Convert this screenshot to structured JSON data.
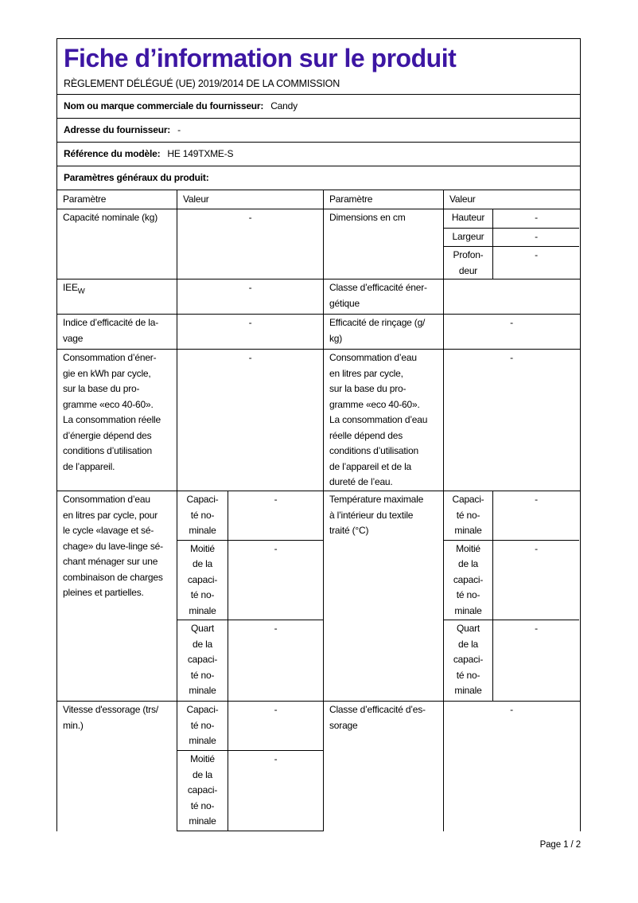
{
  "colors": {
    "title": "#3d16a3"
  },
  "header": {
    "title": "Fiche d’information sur le produit",
    "regulation": "RÈGLEMENT DÉLÉGUÉ (UE) 2019/2014 DE LA COMMISSION"
  },
  "supplier_rows": [
    {
      "label": "Nom ou marque commerciale du fournisseur:",
      "value": "Candy"
    },
    {
      "label": "Adresse du fournisseur:",
      "value": "-"
    },
    {
      "label": "Référence du modèle:",
      "value": "HE 149TXME-S"
    }
  ],
  "section_heading": "Paramètres généraux du produit:",
  "table": {
    "headers": [
      "Paramètre",
      "Valeur",
      "Paramètre",
      "Valeur"
    ],
    "rows": [
      {
        "left": {
          "label": "Capacité nominale (kg)",
          "value": "-"
        },
        "right": {
          "label": "Dimensions en cm",
          "sub": [
            {
              "label": "Hauteur",
              "value": "-"
            },
            {
              "label": "Largeur",
              "value": "-"
            },
            {
              "label": "Profon-\ndeur",
              "value": "-"
            }
          ]
        }
      },
      {
        "left": {
          "label_main": "IEE",
          "label_sub": "W",
          "value": "-"
        },
        "right": {
          "label": "Classe d’efficacité éner-\ngétique",
          "value": ""
        }
      },
      {
        "left": {
          "label": "Indice d’efficacité de la-\nvage",
          "value": "-"
        },
        "right": {
          "label": "Efficacité de rinçage (g/\nkg)",
          "value": "-"
        }
      },
      {
        "left": {
          "label": "Consommation d’éner-\ngie en kWh par cycle,\nsur la base du pro-\ngramme «eco 40-60».\nLa consommation réelle\nd’énergie dépend des\nconditions d’utilisation\nde l’appareil.",
          "value": "-"
        },
        "right": {
          "label": "Consommation d’eau\nen litres par cycle,\nsur la base du pro-\ngramme «eco 40-60».\nLa consommation d’eau\nréelle dépend des\nconditions d’utilisation\nde l’appareil et de la\ndureté de l’eau.",
          "value": "-"
        }
      },
      {
        "left": {
          "label": "Consommation d’eau\nen litres par cycle, pour\nle cycle «lavage et sé-\nchage» du lave-linge sé-\nchant ménager sur une\ncombinaison de charges\npleines et partielles.",
          "sub": [
            {
              "label": "Capaci-\nté no-\nminale",
              "value": "-"
            },
            {
              "label": "Moitié\nde la\ncapaci-\nté no-\nminale",
              "value": "-"
            },
            {
              "label": "Quart\nde la\ncapaci-\nté no-\nminale",
              "value": "-"
            }
          ]
        },
        "right": {
          "label": "Température maximale\nà l’intérieur du textile\ntraité (°C)",
          "sub": [
            {
              "label": "Capaci-\nté no-\nminale",
              "value": "-"
            },
            {
              "label": "Moitié\nde la\ncapaci-\nté no-\nminale",
              "value": "-"
            },
            {
              "label": "Quart\nde la\ncapaci-\nté no-\nminale",
              "value": "-"
            }
          ]
        }
      },
      {
        "left": {
          "label": "Vitesse d'essorage (trs/\nmin.)",
          "sub": [
            {
              "label": "Capaci-\nté no-\nminale",
              "value": "-"
            },
            {
              "label": "Moitié\nde la\ncapaci-\nté no-\nminale",
              "value": "-"
            }
          ]
        },
        "right": {
          "label": "Classe d’efficacité d’es-\nsorage",
          "value": "-"
        }
      }
    ]
  },
  "footer": {
    "page_label": "Page 1 / 2"
  }
}
